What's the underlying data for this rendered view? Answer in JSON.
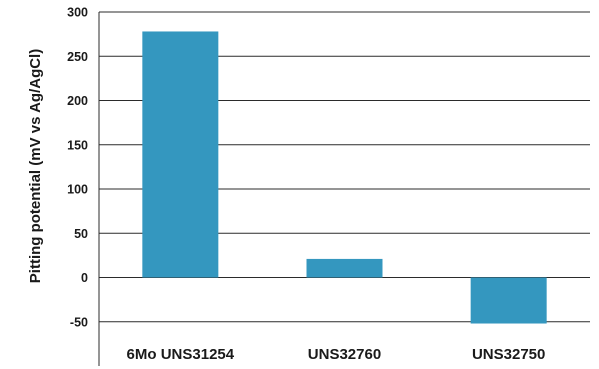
{
  "chart_data": {
    "type": "bar",
    "title": "",
    "xlabel": "",
    "ylabel": "Pitting potential (mV vs Ag/AgCl)",
    "categories": [
      "6Mo UNS31254",
      "UNS32760",
      "UNS32750"
    ],
    "values": [
      278,
      21,
      -52
    ],
    "ylim": [
      -60,
      300
    ],
    "yticks": [
      300,
      250,
      200,
      150,
      100,
      50,
      0,
      -50
    ],
    "grid": true,
    "bar_color": "#3497bf",
    "grid_color": "#2b2b2b"
  }
}
